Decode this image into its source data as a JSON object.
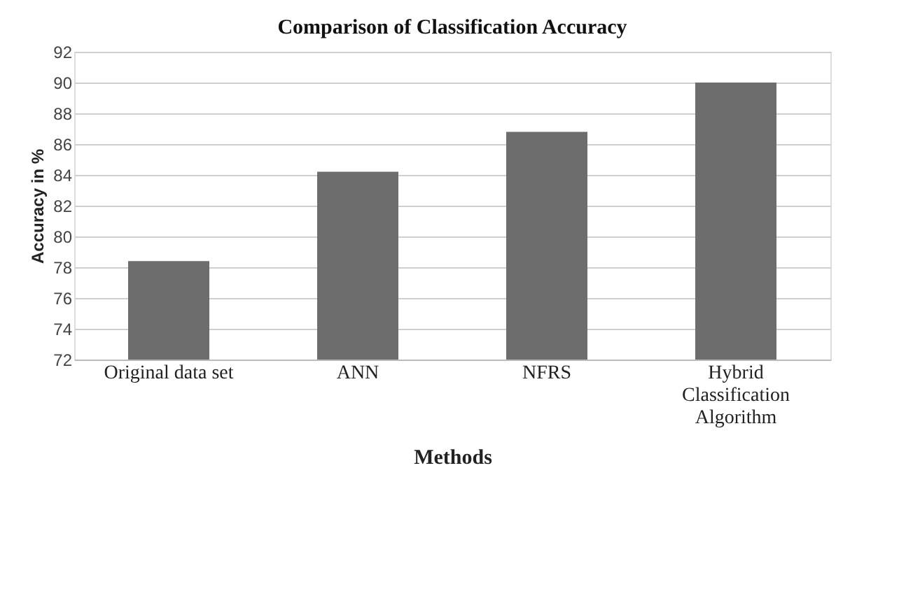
{
  "chart_data": {
    "type": "bar",
    "title": "Comparison of Classification Accuracy",
    "xlabel": "Methods",
    "ylabel": "Accuracy in %",
    "categories": [
      "Original data set",
      "ANN",
      "NFRS",
      "Hybrid Classification Algorithm"
    ],
    "values": [
      78.4,
      84.2,
      86.8,
      90.0
    ],
    "color": "#6d6d6d",
    "ylim": [
      72,
      92
    ],
    "yticks": [
      72,
      74,
      76,
      78,
      80,
      82,
      84,
      86,
      88,
      90,
      92
    ],
    "grid": "y"
  }
}
